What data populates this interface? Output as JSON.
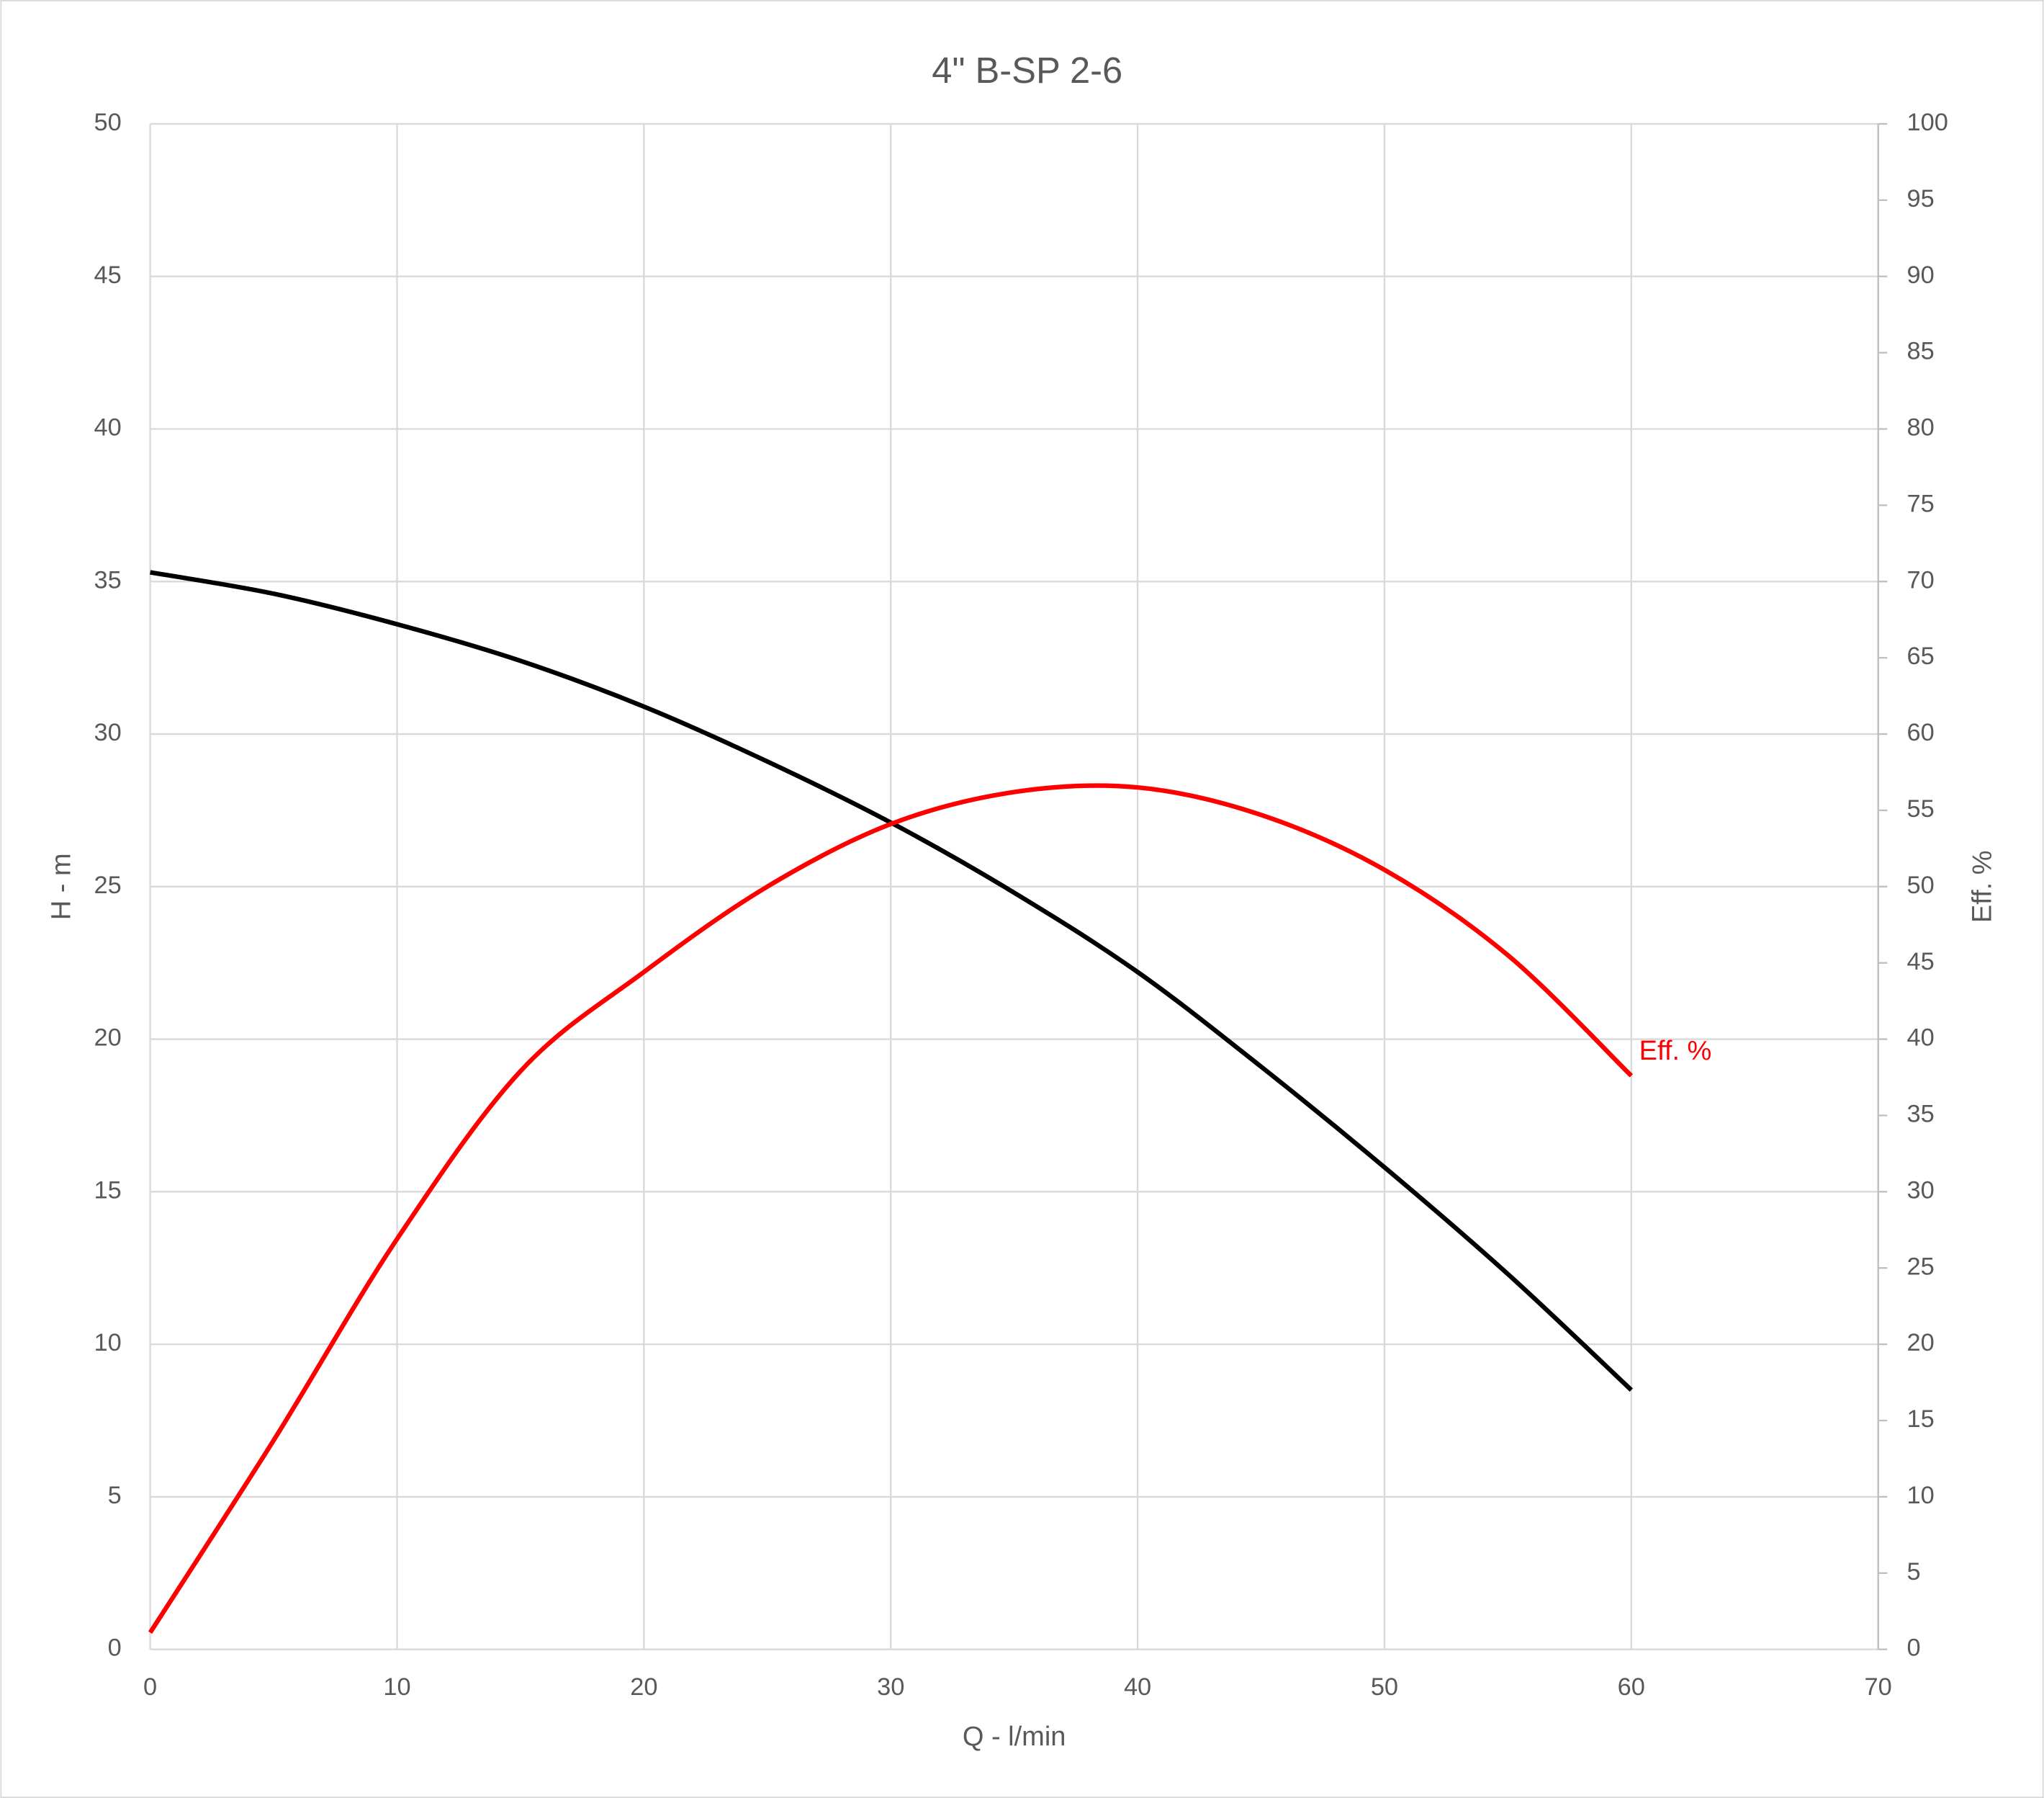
{
  "chart_data": {
    "type": "line",
    "title": "4\" B-SP 2-6",
    "xlabel": "Q - l/min",
    "ylabel": "H - m",
    "y2label": "Eff. %",
    "x": [
      0,
      5,
      10,
      15,
      20,
      25,
      30,
      35,
      40,
      45,
      50,
      55,
      60
    ],
    "series": [
      {
        "color": "#000000",
        "values": [
          35.3,
          34.6,
          33.6,
          32.4,
          30.9,
          29.1,
          27.1,
          24.8,
          22.2,
          19.1,
          15.8,
          12.3,
          8.5
        ]
      },
      {
        "name": "Eff. %",
        "color": "#ff0000",
        "axis": "y2",
        "values": [
          1.1,
          13.7,
          26.9,
          37.9,
          44.4,
          50,
          54.1,
          56.2,
          56.5,
          54.7,
          51.1,
          45.5,
          37.6
        ]
      }
    ],
    "xlim": [
      0,
      70
    ],
    "xticks": [
      0,
      10,
      20,
      30,
      40,
      50,
      60,
      70
    ],
    "ylim": [
      0,
      50
    ],
    "yticks": [
      0,
      5,
      10,
      15,
      20,
      25,
      30,
      35,
      40,
      45,
      50
    ],
    "y2lim": [
      0,
      100
    ],
    "y2ticks": [
      0,
      5,
      10,
      15,
      20,
      25,
      30,
      35,
      40,
      45,
      50,
      55,
      60,
      65,
      70,
      75,
      80,
      85,
      90,
      95,
      100
    ],
    "grid": true
  }
}
